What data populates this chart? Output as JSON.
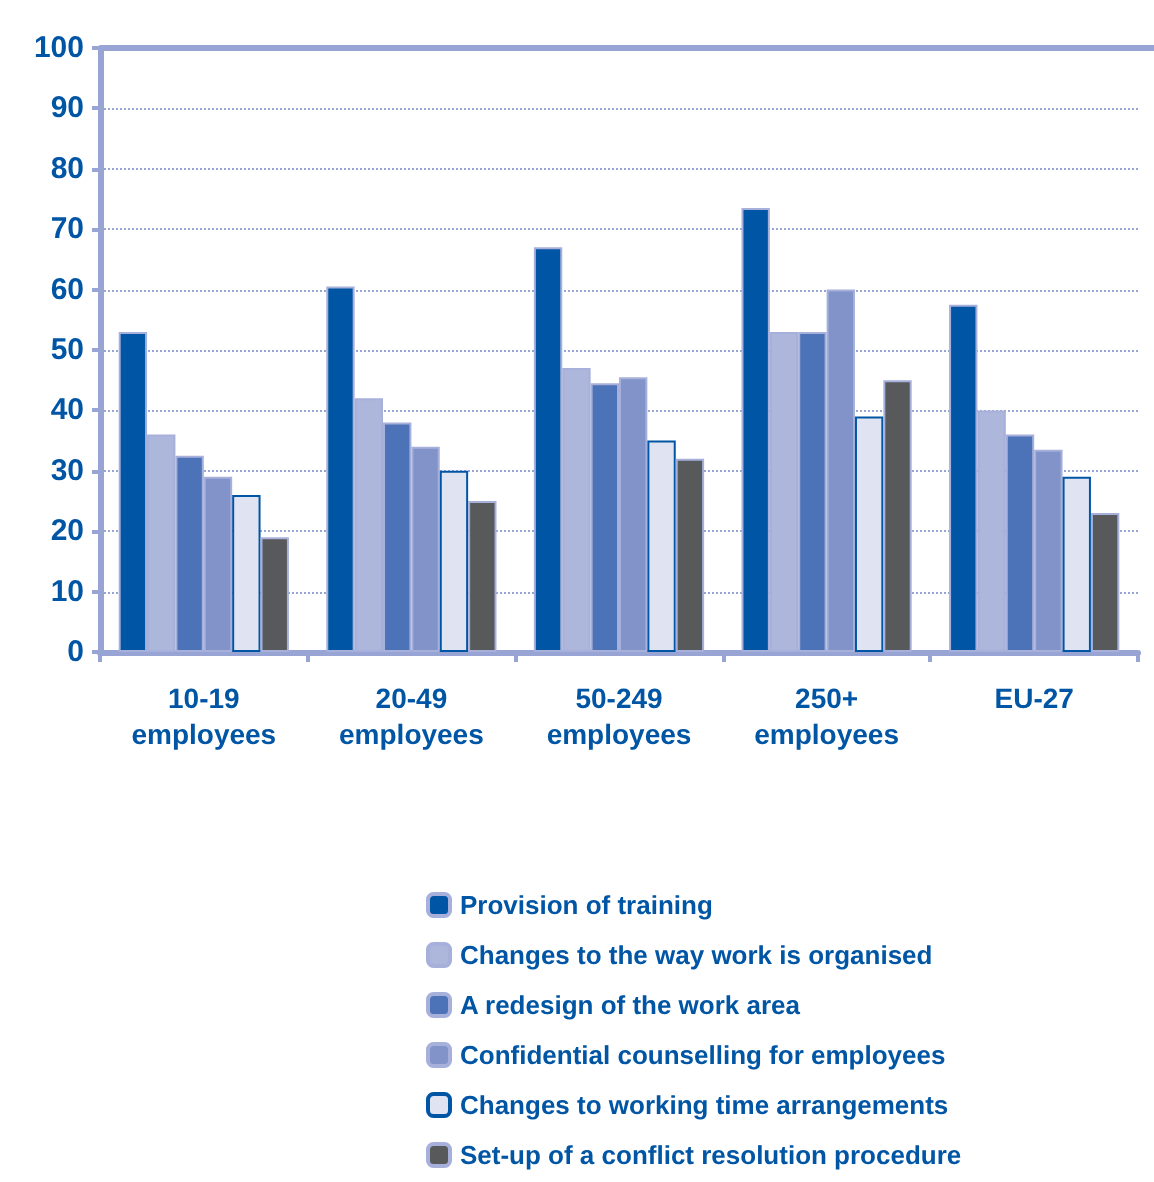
{
  "chart_data": {
    "type": "bar",
    "categories": [
      "10-19\nemployees",
      "20-49\nemployees",
      "50-249\nemployees",
      "250+\nemployees",
      "EU-27"
    ],
    "series": [
      {
        "name": "Provision of training",
        "color": "#0055a4",
        "values": [
          53,
          60.5,
          67,
          73.5,
          57.5
        ]
      },
      {
        "name": "Changes to the way work is organised",
        "color": "#adb7dc",
        "values": [
          36,
          42,
          47,
          53,
          40
        ]
      },
      {
        "name": "A redesign of the work area",
        "color": "#4c72b8",
        "values": [
          32.5,
          38,
          44.5,
          53,
          36
        ]
      },
      {
        "name": "Confidential counselling for employees",
        "color": "#8193c8",
        "values": [
          29,
          34,
          45.5,
          60,
          33.5
        ]
      },
      {
        "name": "Changes to working time arrangements",
        "color": "#e0e3f2",
        "values": [
          26,
          30,
          35,
          39,
          29
        ]
      },
      {
        "name": "Set-up of a conflict resolution procedure",
        "color": "#58595b",
        "values": [
          19,
          25,
          32,
          45,
          23
        ]
      }
    ],
    "ylim": [
      0,
      100
    ],
    "yticks": [
      0,
      10,
      20,
      30,
      40,
      50,
      60,
      70,
      80,
      90,
      100
    ],
    "grid": "y",
    "legend": "bottom"
  }
}
